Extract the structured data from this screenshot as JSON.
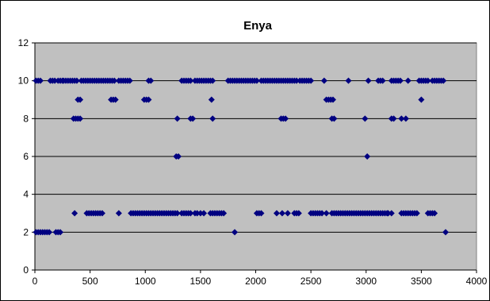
{
  "chart_data": {
    "type": "scatter",
    "title": "Enya",
    "xlabel": "",
    "ylabel": "",
    "xlim": [
      0,
      4000
    ],
    "ylim": [
      0,
      12
    ],
    "xticks": [
      0,
      500,
      1000,
      1500,
      2000,
      2500,
      3000,
      3500,
      4000
    ],
    "yticks": [
      0,
      2,
      4,
      6,
      8,
      10,
      12
    ],
    "grid": "horizontal",
    "legend": "none",
    "colors": {
      "plot_background": "#c0c0c0",
      "marker": "#000080",
      "gridline": "#000000"
    },
    "series": [
      {
        "points": [
          [
            10,
            10
          ],
          [
            30,
            10
          ],
          [
            50,
            10
          ],
          [
            140,
            10
          ],
          [
            160,
            10
          ],
          [
            180,
            10
          ],
          [
            210,
            10
          ],
          [
            230,
            10
          ],
          [
            250,
            10
          ],
          [
            260,
            10
          ],
          [
            280,
            10
          ],
          [
            300,
            10
          ],
          [
            320,
            10
          ],
          [
            340,
            10
          ],
          [
            360,
            10
          ],
          [
            380,
            10
          ],
          [
            420,
            10
          ],
          [
            440,
            10
          ],
          [
            460,
            10
          ],
          [
            480,
            10
          ],
          [
            500,
            10
          ],
          [
            520,
            10
          ],
          [
            540,
            10
          ],
          [
            560,
            10
          ],
          [
            580,
            10
          ],
          [
            600,
            10
          ],
          [
            620,
            10
          ],
          [
            640,
            10
          ],
          [
            660,
            10
          ],
          [
            680,
            10
          ],
          [
            700,
            10
          ],
          [
            720,
            10
          ],
          [
            760,
            10
          ],
          [
            780,
            10
          ],
          [
            800,
            10
          ],
          [
            820,
            10
          ],
          [
            840,
            10
          ],
          [
            860,
            10
          ],
          [
            1030,
            10
          ],
          [
            1050,
            10
          ],
          [
            1330,
            10
          ],
          [
            1350,
            10
          ],
          [
            1370,
            10
          ],
          [
            1390,
            10
          ],
          [
            1410,
            10
          ],
          [
            1450,
            10
          ],
          [
            1470,
            10
          ],
          [
            1490,
            10
          ],
          [
            1510,
            10
          ],
          [
            1530,
            10
          ],
          [
            1550,
            10
          ],
          [
            1570,
            10
          ],
          [
            1590,
            10
          ],
          [
            1610,
            10
          ],
          [
            1750,
            10
          ],
          [
            1770,
            10
          ],
          [
            1790,
            10
          ],
          [
            1810,
            10
          ],
          [
            1830,
            10
          ],
          [
            1850,
            10
          ],
          [
            1870,
            10
          ],
          [
            1890,
            10
          ],
          [
            1910,
            10
          ],
          [
            1930,
            10
          ],
          [
            1950,
            10
          ],
          [
            1970,
            10
          ],
          [
            1990,
            10
          ],
          [
            2010,
            10
          ],
          [
            2050,
            10
          ],
          [
            2070,
            10
          ],
          [
            2090,
            10
          ],
          [
            2110,
            10
          ],
          [
            2130,
            10
          ],
          [
            2150,
            10
          ],
          [
            2170,
            10
          ],
          [
            2190,
            10
          ],
          [
            2210,
            10
          ],
          [
            2230,
            10
          ],
          [
            2250,
            10
          ],
          [
            2270,
            10
          ],
          [
            2290,
            10
          ],
          [
            2310,
            10
          ],
          [
            2330,
            10
          ],
          [
            2350,
            10
          ],
          [
            2370,
            10
          ],
          [
            2400,
            10
          ],
          [
            2420,
            10
          ],
          [
            2440,
            10
          ],
          [
            2460,
            10
          ],
          [
            2480,
            10
          ],
          [
            2500,
            10
          ],
          [
            2620,
            10
          ],
          [
            2840,
            10
          ],
          [
            3020,
            10
          ],
          [
            3110,
            10
          ],
          [
            3130,
            10
          ],
          [
            3150,
            10
          ],
          [
            3230,
            10
          ],
          [
            3250,
            10
          ],
          [
            3270,
            10
          ],
          [
            3290,
            10
          ],
          [
            3310,
            10
          ],
          [
            3380,
            10
          ],
          [
            3480,
            10
          ],
          [
            3500,
            10
          ],
          [
            3520,
            10
          ],
          [
            3540,
            10
          ],
          [
            3560,
            10
          ],
          [
            3600,
            10
          ],
          [
            3620,
            10
          ],
          [
            3640,
            10
          ],
          [
            3660,
            10
          ],
          [
            3680,
            10
          ],
          [
            3700,
            10
          ],
          [
            390,
            9
          ],
          [
            410,
            9
          ],
          [
            690,
            9
          ],
          [
            710,
            9
          ],
          [
            730,
            9
          ],
          [
            990,
            9
          ],
          [
            1010,
            9
          ],
          [
            1030,
            9
          ],
          [
            1600,
            9
          ],
          [
            2640,
            9
          ],
          [
            2660,
            9
          ],
          [
            2680,
            9
          ],
          [
            2700,
            9
          ],
          [
            3500,
            9
          ],
          [
            350,
            8
          ],
          [
            370,
            8
          ],
          [
            390,
            8
          ],
          [
            410,
            8
          ],
          [
            1290,
            8
          ],
          [
            1410,
            8
          ],
          [
            1430,
            8
          ],
          [
            1610,
            8
          ],
          [
            2230,
            8
          ],
          [
            2250,
            8
          ],
          [
            2270,
            8
          ],
          [
            2690,
            8
          ],
          [
            2710,
            8
          ],
          [
            2990,
            8
          ],
          [
            3230,
            8
          ],
          [
            3250,
            8
          ],
          [
            3320,
            8
          ],
          [
            3360,
            8
          ],
          [
            1280,
            6
          ],
          [
            1300,
            6
          ],
          [
            3010,
            6
          ],
          [
            360,
            3
          ],
          [
            470,
            3
          ],
          [
            490,
            3
          ],
          [
            510,
            3
          ],
          [
            530,
            3
          ],
          [
            550,
            3
          ],
          [
            570,
            3
          ],
          [
            590,
            3
          ],
          [
            610,
            3
          ],
          [
            760,
            3
          ],
          [
            870,
            3
          ],
          [
            890,
            3
          ],
          [
            910,
            3
          ],
          [
            930,
            3
          ],
          [
            950,
            3
          ],
          [
            970,
            3
          ],
          [
            990,
            3
          ],
          [
            1010,
            3
          ],
          [
            1030,
            3
          ],
          [
            1050,
            3
          ],
          [
            1070,
            3
          ],
          [
            1090,
            3
          ],
          [
            1110,
            3
          ],
          [
            1130,
            3
          ],
          [
            1150,
            3
          ],
          [
            1170,
            3
          ],
          [
            1190,
            3
          ],
          [
            1210,
            3
          ],
          [
            1230,
            3
          ],
          [
            1250,
            3
          ],
          [
            1270,
            3
          ],
          [
            1290,
            3
          ],
          [
            1330,
            3
          ],
          [
            1350,
            3
          ],
          [
            1370,
            3
          ],
          [
            1390,
            3
          ],
          [
            1410,
            3
          ],
          [
            1450,
            3
          ],
          [
            1470,
            3
          ],
          [
            1500,
            3
          ],
          [
            1530,
            3
          ],
          [
            1590,
            3
          ],
          [
            1610,
            3
          ],
          [
            1630,
            3
          ],
          [
            1650,
            3
          ],
          [
            1670,
            3
          ],
          [
            1690,
            3
          ],
          [
            1710,
            3
          ],
          [
            2010,
            3
          ],
          [
            2030,
            3
          ],
          [
            2050,
            3
          ],
          [
            2190,
            3
          ],
          [
            2240,
            3
          ],
          [
            2290,
            3
          ],
          [
            2350,
            3
          ],
          [
            2370,
            3
          ],
          [
            2390,
            3
          ],
          [
            2500,
            3
          ],
          [
            2520,
            3
          ],
          [
            2540,
            3
          ],
          [
            2560,
            3
          ],
          [
            2580,
            3
          ],
          [
            2600,
            3
          ],
          [
            2640,
            3
          ],
          [
            2690,
            3
          ],
          [
            2710,
            3
          ],
          [
            2730,
            3
          ],
          [
            2750,
            3
          ],
          [
            2770,
            3
          ],
          [
            2790,
            3
          ],
          [
            2810,
            3
          ],
          [
            2830,
            3
          ],
          [
            2850,
            3
          ],
          [
            2870,
            3
          ],
          [
            2890,
            3
          ],
          [
            2910,
            3
          ],
          [
            2930,
            3
          ],
          [
            2950,
            3
          ],
          [
            2970,
            3
          ],
          [
            2990,
            3
          ],
          [
            3010,
            3
          ],
          [
            3030,
            3
          ],
          [
            3050,
            3
          ],
          [
            3070,
            3
          ],
          [
            3090,
            3
          ],
          [
            3110,
            3
          ],
          [
            3130,
            3
          ],
          [
            3150,
            3
          ],
          [
            3170,
            3
          ],
          [
            3190,
            3
          ],
          [
            3200,
            3
          ],
          [
            3230,
            3
          ],
          [
            3320,
            3
          ],
          [
            3340,
            3
          ],
          [
            3360,
            3
          ],
          [
            3380,
            3
          ],
          [
            3400,
            3
          ],
          [
            3420,
            3
          ],
          [
            3440,
            3
          ],
          [
            3460,
            3
          ],
          [
            3560,
            3
          ],
          [
            3580,
            3
          ],
          [
            3600,
            3
          ],
          [
            3620,
            3
          ],
          [
            10,
            2
          ],
          [
            30,
            2
          ],
          [
            50,
            2
          ],
          [
            70,
            2
          ],
          [
            90,
            2
          ],
          [
            110,
            2
          ],
          [
            130,
            2
          ],
          [
            190,
            2
          ],
          [
            210,
            2
          ],
          [
            230,
            2
          ],
          [
            1810,
            2
          ],
          [
            3720,
            2
          ]
        ]
      }
    ]
  }
}
